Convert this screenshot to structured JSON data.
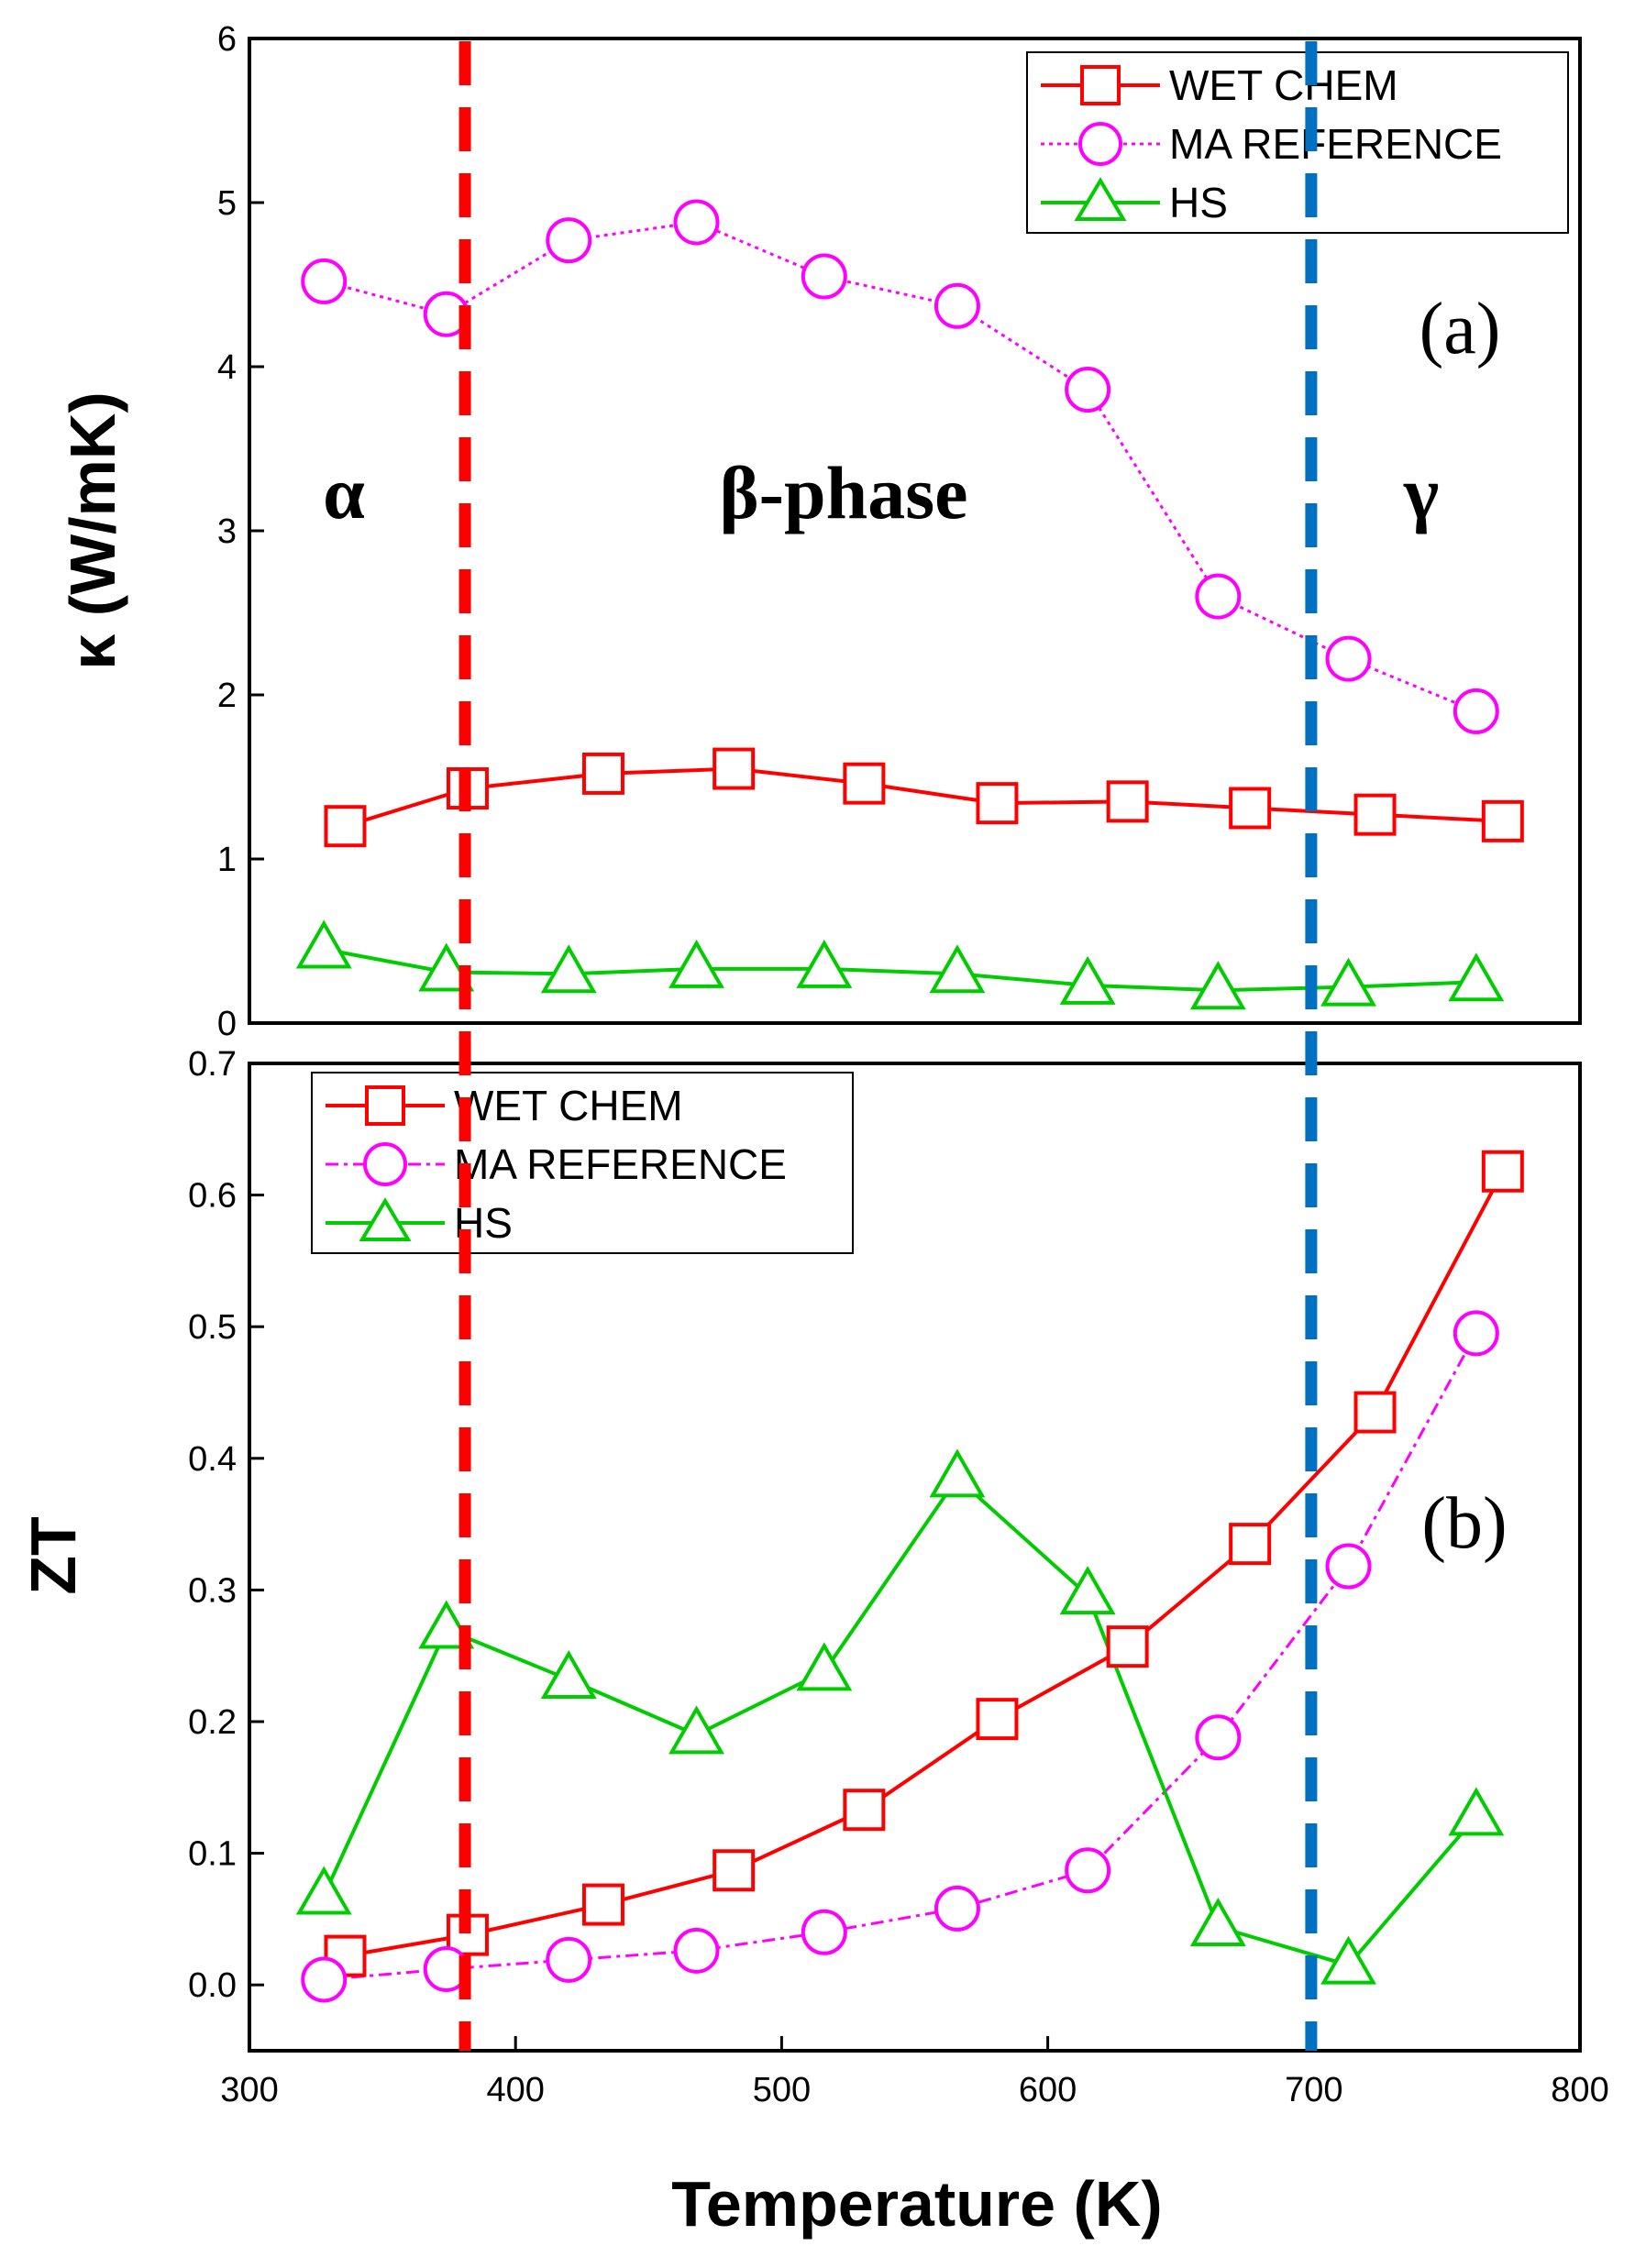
{
  "chart_data": [
    {
      "panel": "(a)",
      "type": "line",
      "ylabel": "κ (W/mK)",
      "xlim": [
        300,
        800
      ],
      "ylim": [
        0,
        6
      ],
      "yticks": [
        "0",
        "1",
        "2",
        "3",
        "4",
        "5",
        "6"
      ],
      "grid": false,
      "legend_position": "top-right",
      "legend": [
        "WET CHEM",
        "MA REFERENCE",
        "HS"
      ],
      "panel_label": "(a)",
      "phase_labels": [
        "α",
        "β-phase",
        "γ"
      ],
      "series": [
        {
          "name": "WET CHEM",
          "color": "#ff0000",
          "marker": "square",
          "line": "solid",
          "x": [
            336,
            382,
            433,
            482,
            531,
            581,
            630,
            676,
            723,
            771
          ],
          "y": [
            1.2,
            1.43,
            1.52,
            1.55,
            1.46,
            1.34,
            1.35,
            1.31,
            1.27,
            1.23
          ]
        },
        {
          "name": "MA REFERENCE",
          "color": "#ff00ff",
          "marker": "circle",
          "line": "dotted",
          "x": [
            328,
            374,
            420,
            468,
            516,
            566,
            615,
            664,
            713,
            761
          ],
          "y": [
            4.52,
            4.32,
            4.77,
            4.88,
            4.55,
            4.37,
            3.86,
            2.6,
            2.22,
            1.9
          ]
        },
        {
          "name": "HS",
          "color": "#00cc00",
          "marker": "triangle",
          "line": "solid",
          "x": [
            328,
            374,
            420,
            468,
            516,
            566,
            615,
            664,
            713,
            761
          ],
          "y": [
            0.45,
            0.31,
            0.3,
            0.33,
            0.33,
            0.3,
            0.23,
            0.2,
            0.22,
            0.25
          ]
        }
      ]
    },
    {
      "panel": "(b)",
      "type": "line",
      "xlabel": "Temperature (K)",
      "ylabel": "ZT",
      "xlim": [
        300,
        800
      ],
      "ylim": [
        -0.05,
        0.7
      ],
      "xticks": [
        "300",
        "400",
        "500",
        "600",
        "700",
        "800"
      ],
      "yticks": [
        "0.0",
        "0.1",
        "0.2",
        "0.3",
        "0.4",
        "0.5",
        "0.6",
        "0.7"
      ],
      "grid": false,
      "legend_position": "top-left",
      "legend": [
        "WET CHEM",
        "MA REFERENCE",
        "HS"
      ],
      "panel_label": "(b)",
      "series": [
        {
          "name": "WET CHEM",
          "color": "#ff0000",
          "marker": "square",
          "line": "solid",
          "x": [
            336,
            382,
            433,
            482,
            531,
            581,
            630,
            676,
            723,
            771
          ],
          "y": [
            0.022,
            0.038,
            0.061,
            0.087,
            0.133,
            0.202,
            0.257,
            0.335,
            0.435,
            0.618
          ]
        },
        {
          "name": "MA REFERENCE",
          "color": "#ff00ff",
          "marker": "circle",
          "line": "dashdot",
          "x": [
            328,
            374,
            420,
            468,
            516,
            566,
            615,
            664,
            713,
            761
          ],
          "y": [
            0.004,
            0.012,
            0.019,
            0.026,
            0.04,
            0.058,
            0.087,
            0.188,
            0.318,
            0.495
          ]
        },
        {
          "name": "HS",
          "color": "#00cc00",
          "marker": "triangle",
          "line": "solid",
          "x": [
            328,
            374,
            420,
            468,
            516,
            566,
            615,
            664,
            713,
            761
          ],
          "y": [
            0.068,
            0.27,
            0.232,
            0.19,
            0.238,
            0.385,
            0.296,
            0.044,
            0.015,
            0.128
          ]
        }
      ]
    }
  ],
  "phase_boundaries": [
    {
      "x": 381,
      "color": "#ff0000"
    },
    {
      "x": 699,
      "color": "#0070c0"
    }
  ]
}
